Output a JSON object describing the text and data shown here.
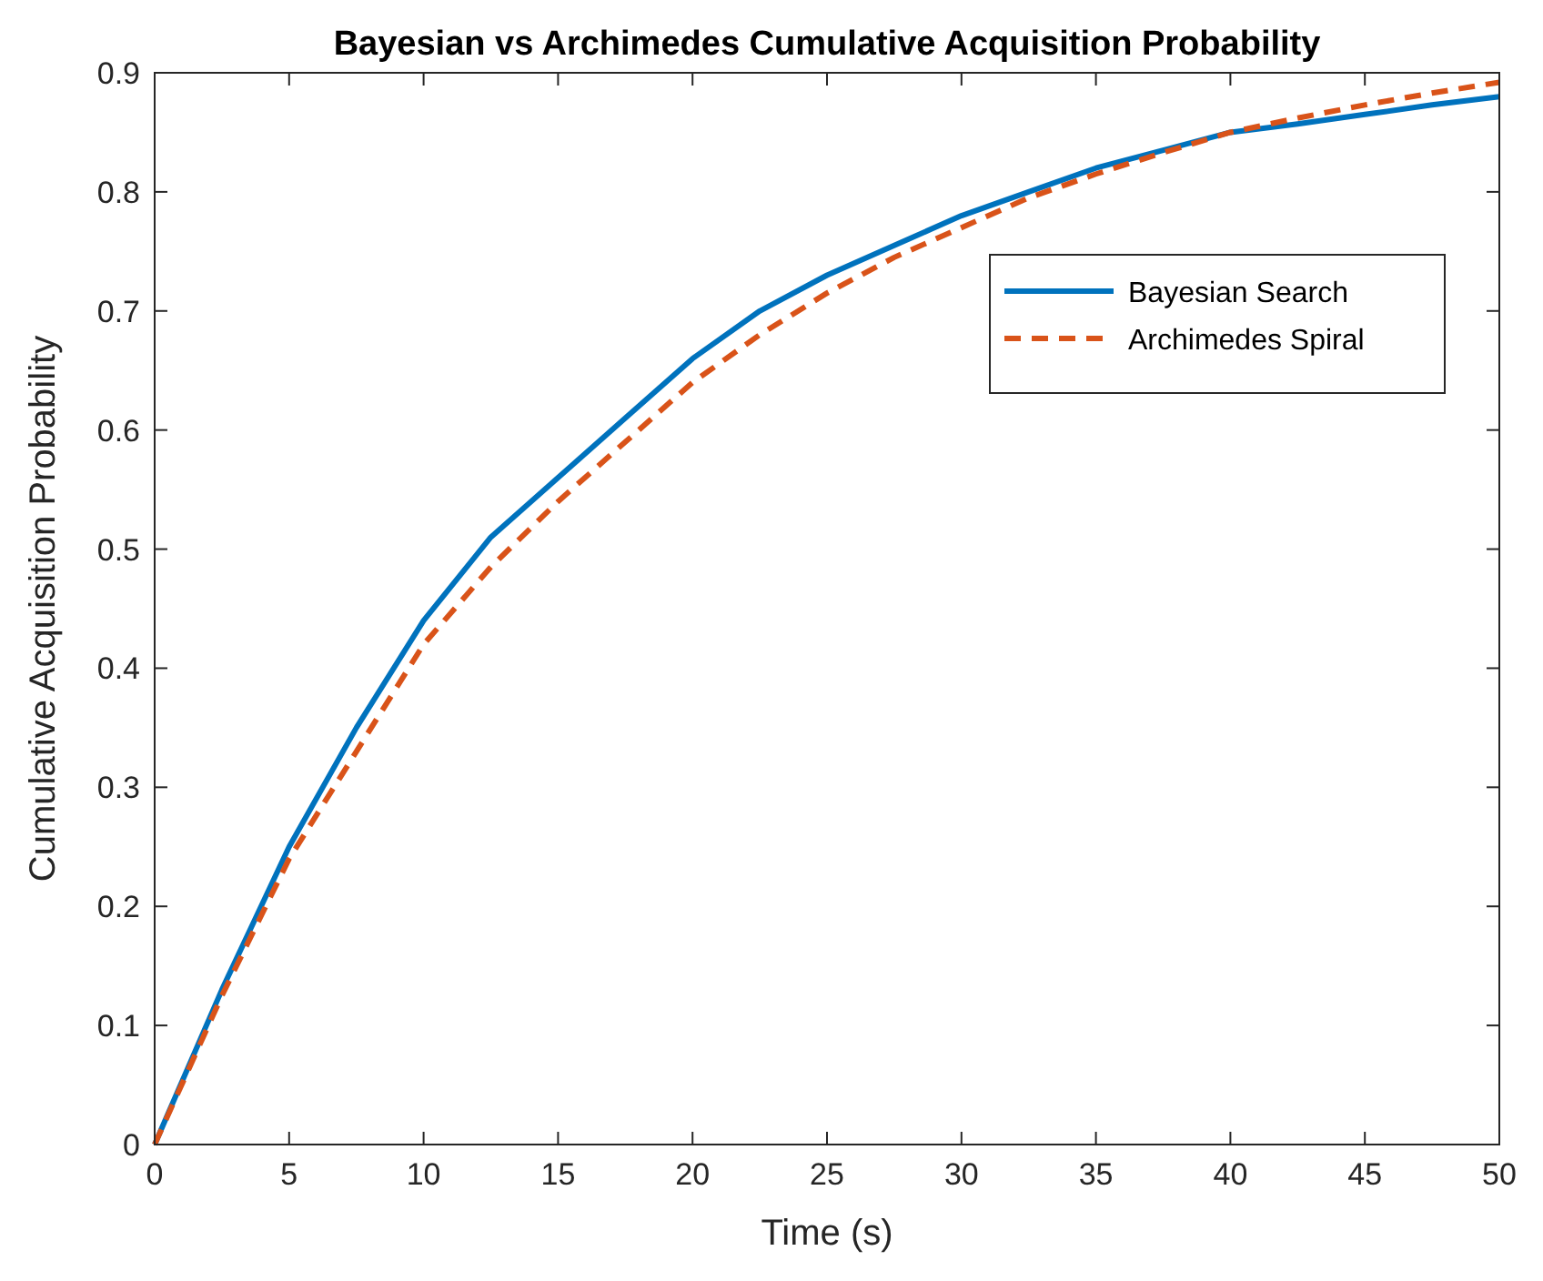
{
  "chart_data": {
    "type": "line",
    "title": "Bayesian vs Archimedes Cumulative Acquisition Probability",
    "xlabel": "Time (s)",
    "ylabel": "Cumulative Acquisition Probability",
    "x": [
      0,
      2.5,
      5,
      7.5,
      10,
      12.5,
      15,
      17.5,
      20,
      22.5,
      25,
      27.5,
      30,
      32.5,
      35,
      37.5,
      40,
      42.5,
      45,
      47.5,
      50
    ],
    "series": [
      {
        "name": "Bayesian Search",
        "color": "#0072bd",
        "line_style": "solid",
        "values": [
          0,
          0.13,
          0.25,
          0.35,
          0.44,
          0.51,
          0.56,
          0.61,
          0.66,
          0.7,
          0.73,
          0.755,
          0.78,
          0.8,
          0.82,
          0.835,
          0.85,
          0.857,
          0.865,
          0.873,
          0.88
        ]
      },
      {
        "name": "Archimedes Spiral",
        "color": "#d95319",
        "line_style": "dashed",
        "values": [
          0,
          0.125,
          0.24,
          0.33,
          0.42,
          0.485,
          0.54,
          0.59,
          0.64,
          0.68,
          0.715,
          0.745,
          0.77,
          0.795,
          0.815,
          0.833,
          0.85,
          0.862,
          0.873,
          0.883,
          0.892
        ]
      }
    ],
    "xlim": [
      0,
      50
    ],
    "xticks": [
      0,
      5,
      10,
      15,
      20,
      25,
      30,
      35,
      40,
      45,
      50
    ],
    "ylim": [
      0,
      0.9
    ],
    "yticks": [
      0,
      0.1,
      0.2,
      0.3,
      0.4,
      0.5,
      0.6,
      0.7,
      0.8,
      0.9
    ],
    "grid": false,
    "legend": "top right"
  }
}
